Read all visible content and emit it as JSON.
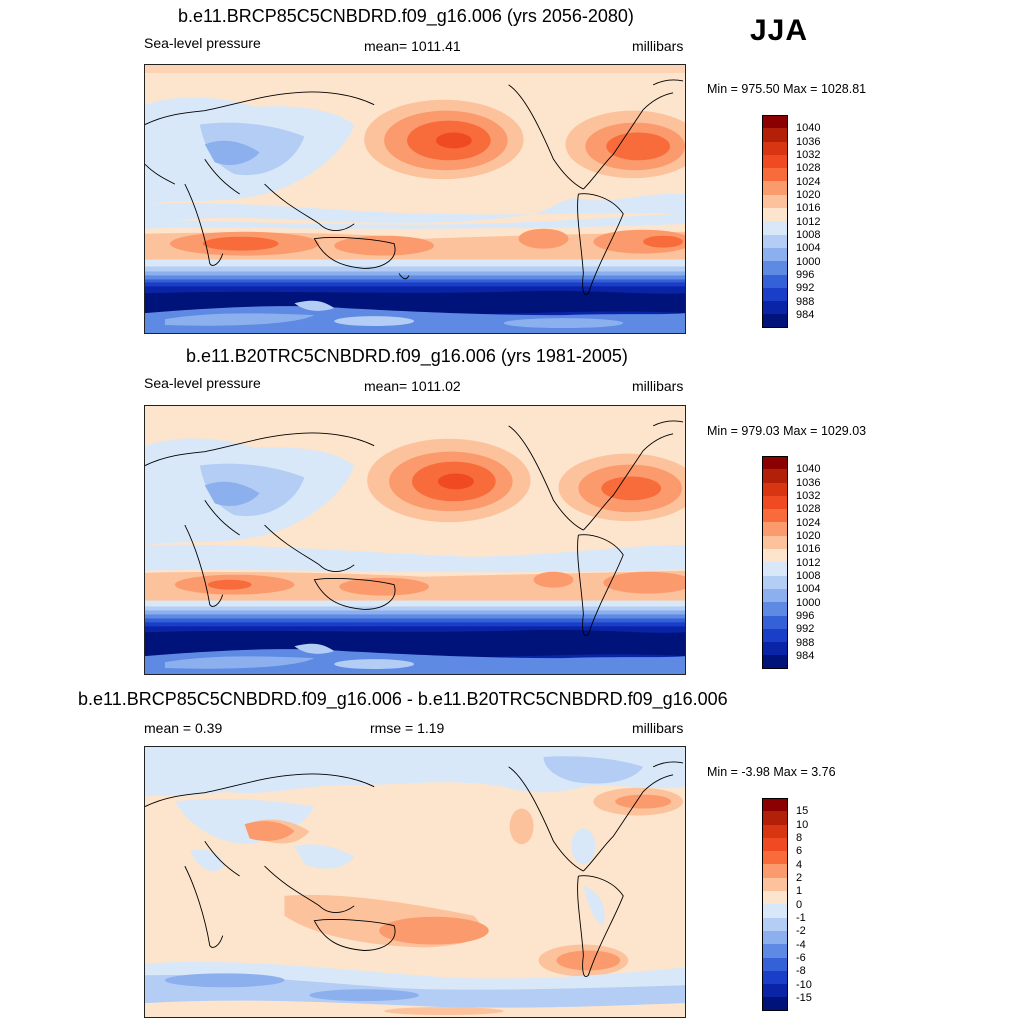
{
  "season": "JJA",
  "panels": [
    {
      "title": "b.e11.BRCP85C5CNBDRD.f09_g16.006 (yrs 2056-2080)",
      "left_label": "Sea-level pressure",
      "center_label": "mean= 1011.41",
      "units": "millibars",
      "minmax": "Min = 975.50 Max = 1028.81"
    },
    {
      "title": "b.e11.B20TRC5CNBDRD.f09_g16.006 (yrs 1981-2005)",
      "left_label": "Sea-level pressure",
      "center_label": "mean= 1011.02",
      "units": "millibars",
      "minmax": "Min = 979.03 Max = 1029.03"
    },
    {
      "title": "b.e11.BRCP85C5CNBDRD.f09_g16.006 - b.e11.B20TRC5CNBDRD.f09_g16.006",
      "left_label": "mean =   0.39",
      "center_label": "rmse =   1.19",
      "units": "millibars",
      "minmax": "Min =  -3.98 Max =   3.76"
    }
  ],
  "colorbars": {
    "slp": {
      "labels": [
        "1040",
        "1036",
        "1032",
        "1028",
        "1024",
        "1020",
        "1016",
        "1012",
        "1008",
        "1004",
        "1000",
        "996",
        "992",
        "988",
        "984"
      ],
      "colors": [
        "#8b0000",
        "#b2200a",
        "#d83512",
        "#f04a22",
        "#f86c3c",
        "#fb9a6c",
        "#fcc29c",
        "#fde4cc",
        "#d8e8f8",
        "#b4cdf4",
        "#8cb0ee",
        "#5e8ae4",
        "#3561d8",
        "#1a3ec8",
        "#0a24a8",
        "#00137a"
      ]
    },
    "diff": {
      "labels": [
        "15",
        "10",
        "8",
        "6",
        "4",
        "2",
        "1",
        "0",
        "-1",
        "-2",
        "-4",
        "-6",
        "-8",
        "-10",
        "-15"
      ],
      "colors": [
        "#8b0000",
        "#b2200a",
        "#d83512",
        "#f04a22",
        "#f86c3c",
        "#fb9a6c",
        "#fcc29c",
        "#fde4cc",
        "#d8e8f8",
        "#b4cdf4",
        "#8cb0ee",
        "#5e8ae4",
        "#3561d8",
        "#1a3ec8",
        "#0a24a8",
        "#00137a"
      ]
    }
  }
}
